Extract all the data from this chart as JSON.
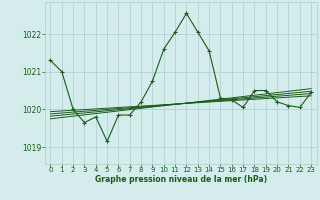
{
  "xlabel": "Graphe pression niveau de la mer (hPa)",
  "bg_color": "#d4ecec",
  "grid_color": "#a8cece",
  "line_color": "#1a5c1a",
  "xlim": [
    -0.5,
    23.5
  ],
  "ylim": [
    1018.55,
    1022.85
  ],
  "yticks": [
    1019,
    1020,
    1021,
    1022
  ],
  "xticks": [
    0,
    1,
    2,
    3,
    4,
    5,
    6,
    7,
    8,
    9,
    10,
    11,
    12,
    13,
    14,
    15,
    16,
    17,
    18,
    19,
    20,
    21,
    22,
    23
  ],
  "series1_x": [
    0,
    1,
    2,
    3,
    4,
    5,
    6,
    7,
    8,
    9,
    10,
    11,
    12,
    13,
    14,
    15,
    16,
    17,
    18,
    19,
    20,
    21,
    22,
    23
  ],
  "series1_y": [
    1021.3,
    1021.0,
    1020.0,
    1019.65,
    1019.8,
    1019.15,
    1019.85,
    1019.85,
    1020.2,
    1020.75,
    1021.6,
    1022.05,
    1022.55,
    1022.05,
    1021.55,
    1020.3,
    1020.25,
    1020.05,
    1020.5,
    1020.5,
    1020.2,
    1020.1,
    1020.05,
    1020.45
  ],
  "trend_lines": [
    {
      "x": [
        0,
        23
      ],
      "y": [
        1019.75,
        1020.55
      ]
    },
    {
      "x": [
        0,
        23
      ],
      "y": [
        1019.82,
        1020.48
      ]
    },
    {
      "x": [
        0,
        23
      ],
      "y": [
        1019.88,
        1020.42
      ]
    },
    {
      "x": [
        0,
        23
      ],
      "y": [
        1019.94,
        1020.36
      ]
    }
  ]
}
